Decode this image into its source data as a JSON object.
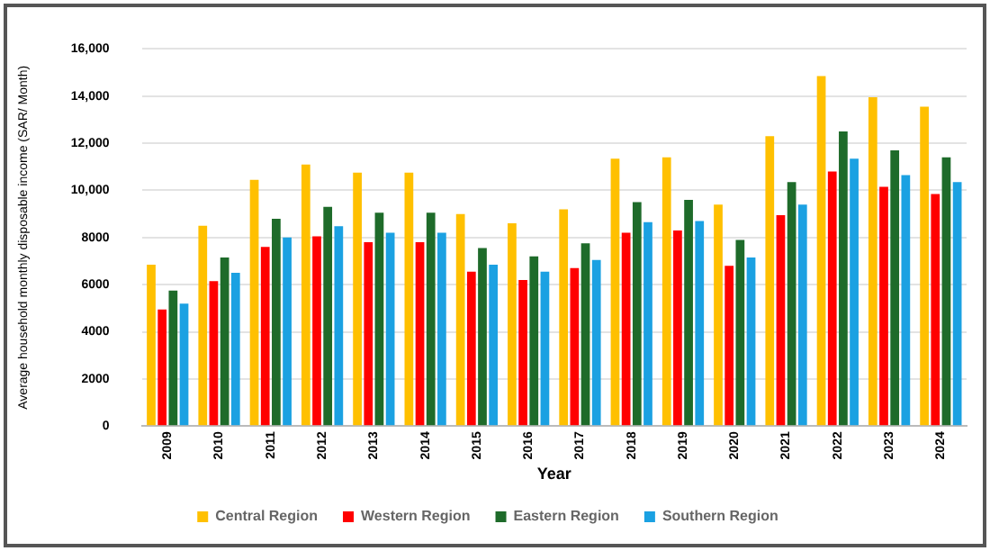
{
  "chart_data": {
    "type": "bar",
    "xlabel": "Year",
    "ylabel": "Average household monthly disposable income (SAR/ Month)",
    "categories": [
      "2009",
      "2010",
      "2011",
      "2012",
      "2013",
      "2014",
      "2015",
      "2016",
      "2017",
      "2018",
      "2019",
      "2020",
      "2021",
      "2022",
      "2023",
      "2024"
    ],
    "series": [
      {
        "name": "Central Region",
        "color": "#ffc000",
        "values": [
          6850,
          8500,
          10450,
          11100,
          10750,
          10750,
          9000,
          8600,
          9200,
          11350,
          11400,
          9400,
          12300,
          14850,
          13950,
          13550
        ]
      },
      {
        "name": "Western Region",
        "color": "#ff0000",
        "values": [
          4950,
          6150,
          7600,
          8050,
          7800,
          7800,
          6550,
          6200,
          6700,
          8200,
          8300,
          6800,
          8950,
          10800,
          10150,
          9850
        ]
      },
      {
        "name": "Eastern Region",
        "color": "#1e6b2a",
        "values": [
          5750,
          7150,
          8800,
          9300,
          9050,
          9050,
          7550,
          7200,
          7750,
          9500,
          9600,
          7900,
          10350,
          12500,
          11700,
          11400
        ]
      },
      {
        "name": "Southern Region",
        "color": "#1ba1e2",
        "values": [
          5200,
          6500,
          8000,
          8480,
          8200,
          8200,
          6850,
          6550,
          7050,
          8650,
          8700,
          7150,
          9400,
          11350,
          10650,
          10350
        ]
      }
    ],
    "ylim": [
      0,
      16000
    ],
    "yticks": [
      {
        "value": 0,
        "label": "0"
      },
      {
        "value": 2000,
        "label": "2000"
      },
      {
        "value": 4000,
        "label": "4000"
      },
      {
        "value": 6000,
        "label": "6000"
      },
      {
        "value": 8000,
        "label": "8000"
      },
      {
        "value": 10000,
        "label": "10,000"
      },
      {
        "value": 12000,
        "label": "12,000"
      },
      {
        "value": 14000,
        "label": "14,000"
      },
      {
        "value": 16000,
        "label": "16,000"
      }
    ],
    "grid": "y",
    "legend": "bottom"
  }
}
